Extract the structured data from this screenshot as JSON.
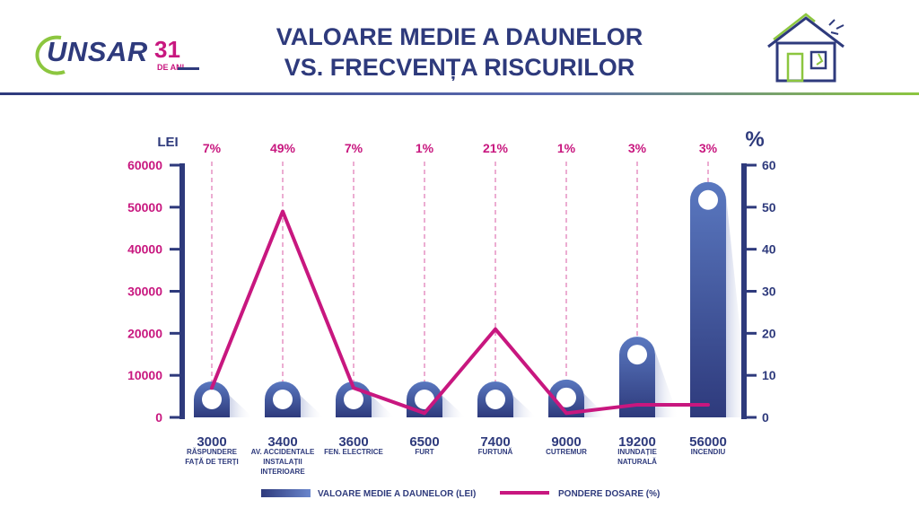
{
  "header": {
    "brand": "UNSAR",
    "anniversary_number": "31",
    "anniversary_suffix": "DE ANI",
    "title_line1": "VALOARE MEDIE A DAUNELOR",
    "title_line2": "VS. FRECVENȚA RISCURILOR"
  },
  "colors": {
    "navy": "#2e3a7c",
    "magenta": "#c8177f",
    "bar_light": "#5a78c0",
    "green": "#8cc63f"
  },
  "chart_data": {
    "type": "bar",
    "title": "VALOARE MEDIE A DAUNELOR VS. FRECVENȚA RISCURILOR",
    "left_axis_label": "LEI",
    "right_axis_label": "%",
    "left_ylim": [
      0,
      60000
    ],
    "right_ylim": [
      0,
      60
    ],
    "left_ticks": [
      "60000",
      "50000",
      "40000",
      "30000",
      "20000",
      "10000",
      "0"
    ],
    "right_ticks": [
      "60",
      "50",
      "40",
      "30",
      "20",
      "10",
      "0"
    ],
    "categories": [
      [
        "RĂSPUNDERE",
        "FAȚĂ DE TERȚI"
      ],
      [
        "AV. ACCIDENTALE",
        "INSTALAȚII",
        "INTERIOARE"
      ],
      [
        "FEN. ELECTRICE"
      ],
      [
        "FURT"
      ],
      [
        "FURTUNĂ"
      ],
      [
        "CUTREMUR"
      ],
      [
        "INUNDAȚIE",
        "NATURALĂ"
      ],
      [
        "INCENDIU"
      ]
    ],
    "series": [
      {
        "name": "VALOARE MEDIE A DAUNELOR (LEI)",
        "type": "bar",
        "axis": "left",
        "values": [
          3000,
          3400,
          3600,
          6500,
          7400,
          9000,
          19200,
          56000
        ],
        "value_labels": [
          "3000",
          "3400",
          "3600",
          "6500",
          "7400",
          "9000",
          "19200",
          "56000"
        ]
      },
      {
        "name": "PONDERE DOSARE (%)",
        "type": "line",
        "axis": "right",
        "values": [
          7,
          49,
          7,
          1,
          21,
          1,
          3,
          3
        ],
        "value_labels": [
          "7%",
          "49%",
          "7%",
          "1%",
          "21%",
          "1%",
          "3%",
          "3%"
        ]
      }
    ],
    "legend": [
      "VALOARE MEDIE A DAUNELOR (LEI)",
      "PONDERE DOSARE (%)"
    ],
    "legend_position": "bottom"
  }
}
